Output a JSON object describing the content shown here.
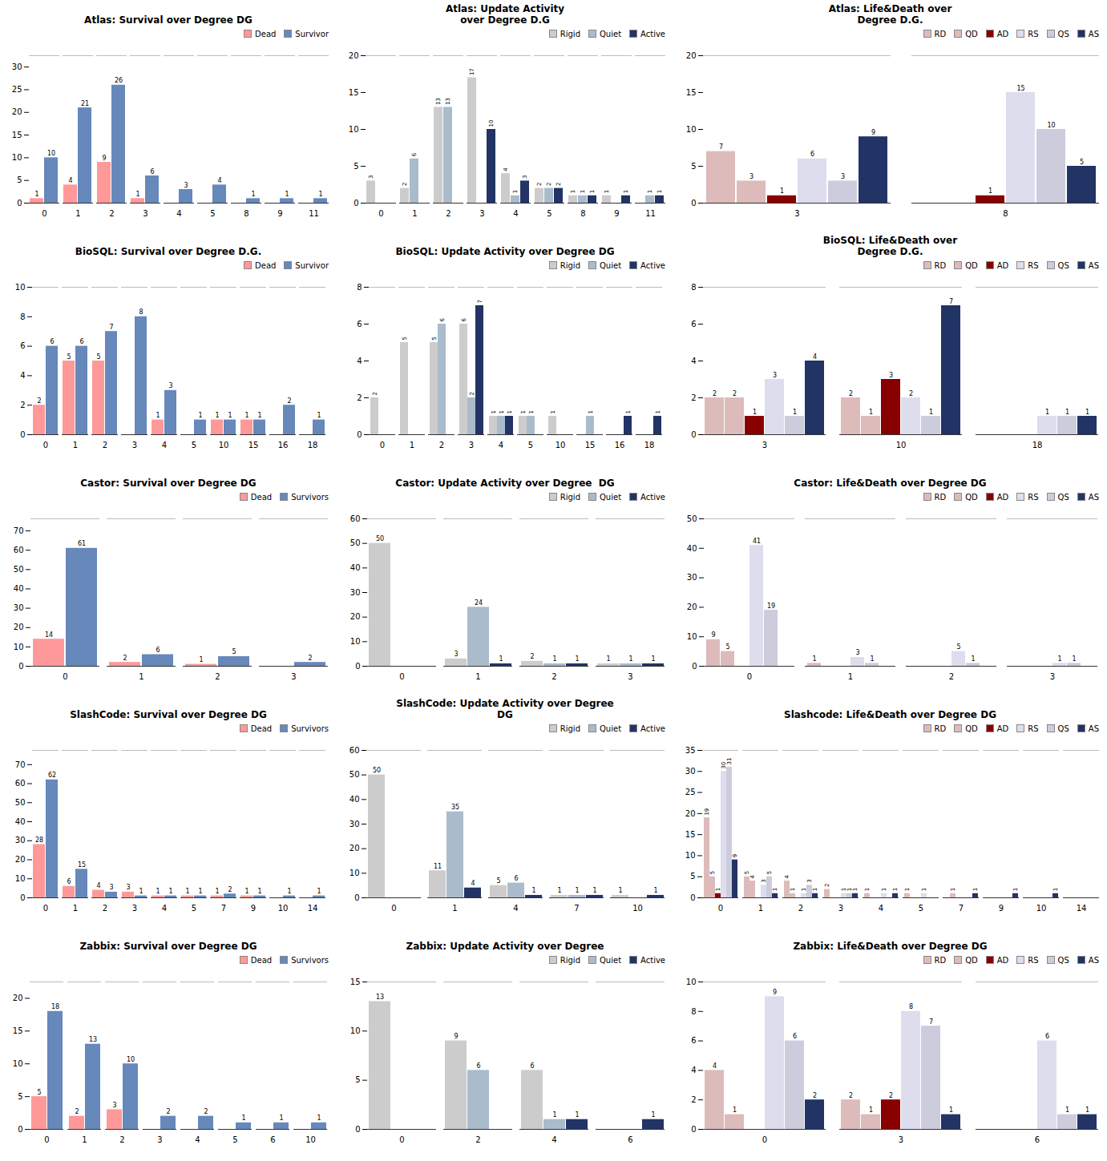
{
  "chart_data": [
    {
      "type": "bar",
      "title": "Atlas: Survival over Degree DG",
      "categories": [
        "0",
        "1",
        "2",
        "3",
        "4",
        "5",
        "8",
        "9",
        "11"
      ],
      "series": [
        {
          "name": "Dead",
          "color": "#FF9999",
          "values": [
            1,
            4,
            9,
            1,
            0,
            0,
            0,
            0,
            0
          ]
        },
        {
          "name": "Survivor",
          "color": "#6688BB",
          "values": [
            10,
            21,
            26,
            6,
            3,
            4,
            1,
            1,
            1
          ]
        }
      ],
      "ylim": [
        0,
        32.5
      ],
      "yticks": [
        0,
        5,
        10,
        15,
        20,
        25,
        30
      ],
      "data_labels": true,
      "legend": "upper right",
      "grid": false
    },
    {
      "type": "bar",
      "title": "Atlas: Update Activity\nover Degree D.G",
      "categories": [
        "0",
        "1",
        "2",
        "3",
        "4",
        "5",
        "8",
        "9",
        "11"
      ],
      "series": [
        {
          "name": "Rigid",
          "color": "#CCCCCC",
          "values": [
            3,
            2,
            13,
            17,
            4,
            2,
            1,
            1,
            0
          ]
        },
        {
          "name": "Quiet",
          "color": "#AABBCC",
          "values": [
            0,
            6,
            13,
            0,
            1,
            2,
            1,
            0,
            1
          ]
        },
        {
          "name": "Active",
          "color": "#223366",
          "values": [
            0,
            0,
            0,
            10,
            3,
            2,
            1,
            1,
            1
          ]
        }
      ],
      "ylim": [
        0,
        20
      ],
      "yticks": [
        0,
        5,
        10,
        15,
        20
      ],
      "data_labels": true,
      "legend": "upper right",
      "grid": false
    },
    {
      "type": "bar",
      "title": "Atlas: Life&Death over\nDegree D.G.",
      "categories": [
        "3",
        "8"
      ],
      "series": [
        {
          "name": "RD",
          "color": "#DDBBBB",
          "values": [
            7,
            0
          ]
        },
        {
          "name": "QD",
          "color": "#DDBBBB",
          "values": [
            3,
            0
          ]
        },
        {
          "name": "AD",
          "color": "#880000",
          "values": [
            1,
            1
          ]
        },
        {
          "name": "RS",
          "color": "#DDDDEE",
          "values": [
            6,
            15
          ]
        },
        {
          "name": "QS",
          "color": "#CCCCDD",
          "values": [
            3,
            10
          ]
        },
        {
          "name": "AS",
          "color": "#223366",
          "values": [
            9,
            5
          ]
        }
      ],
      "ylim": [
        0,
        20
      ],
      "yticks": [
        0,
        5,
        10,
        15,
        20
      ],
      "data_labels": true,
      "legend": "upper right",
      "grid": false
    },
    {
      "type": "bar",
      "title": "BioSQL: Survival over Degree D.G.",
      "categories": [
        "0",
        "1",
        "2",
        "3",
        "4",
        "5",
        "10",
        "15",
        "16",
        "18"
      ],
      "series": [
        {
          "name": "Dead",
          "color": "#FF9999",
          "values": [
            2,
            5,
            5,
            0,
            1,
            0,
            1,
            1,
            0,
            0
          ]
        },
        {
          "name": "Survivor",
          "color": "#6688BB",
          "values": [
            6,
            6,
            7,
            8,
            3,
            1,
            1,
            1,
            2,
            1
          ]
        }
      ],
      "ylim": [
        0,
        10
      ],
      "yticks": [
        0,
        2,
        4,
        6,
        8,
        10
      ],
      "data_labels": true,
      "legend": "upper right",
      "grid": false
    },
    {
      "type": "bar",
      "title": "BioSQL: Update Activity over Degree DG",
      "categories": [
        "0",
        "1",
        "2",
        "3",
        "4",
        "5",
        "10",
        "15",
        "16",
        "18"
      ],
      "series": [
        {
          "name": "Rigid",
          "color": "#CCCCCC",
          "values": [
            2,
            5,
            5,
            6,
            1,
            1,
            1,
            0,
            0,
            0
          ]
        },
        {
          "name": "Quiet",
          "color": "#AABBCC",
          "values": [
            0,
            0,
            6,
            2,
            1,
            1,
            0,
            1,
            0,
            0
          ]
        },
        {
          "name": "Active",
          "color": "#223366",
          "values": [
            0,
            0,
            0,
            7,
            1,
            0,
            0,
            0,
            1,
            1
          ]
        }
      ],
      "ylim": [
        0,
        8
      ],
      "yticks": [
        0,
        2,
        4,
        6,
        8
      ],
      "data_labels": true,
      "legend": "upper right",
      "grid": false
    },
    {
      "type": "bar",
      "title": "BioSQL: Life&Death over\nDegree D.G.",
      "categories": [
        "3",
        "10",
        "18"
      ],
      "series": [
        {
          "name": "RD",
          "color": "#DDBBBB",
          "values": [
            2,
            2,
            0
          ]
        },
        {
          "name": "QD",
          "color": "#DDBBBB",
          "values": [
            2,
            1,
            0
          ]
        },
        {
          "name": "AD",
          "color": "#880000",
          "values": [
            1,
            3,
            0
          ]
        },
        {
          "name": "RS",
          "color": "#DDDDEE",
          "values": [
            3,
            2,
            1
          ]
        },
        {
          "name": "QS",
          "color": "#CCCCDD",
          "values": [
            1,
            1,
            1
          ]
        },
        {
          "name": "AS",
          "color": "#223366",
          "values": [
            4,
            7,
            1
          ]
        }
      ],
      "ylim": [
        0,
        8
      ],
      "yticks": [
        0,
        2,
        4,
        6,
        8
      ],
      "data_labels": true,
      "legend": "upper right",
      "grid": false
    },
    {
      "type": "bar",
      "title": "Castor: Survival over Degree DG",
      "categories": [
        "0",
        "1",
        "2",
        "3"
      ],
      "series": [
        {
          "name": "Dead",
          "color": "#FF9999",
          "values": [
            14,
            2,
            1,
            0
          ]
        },
        {
          "name": "Survivors",
          "color": "#6688BB",
          "values": [
            61,
            6,
            5,
            2
          ]
        }
      ],
      "ylim": [
        0,
        76.25
      ],
      "yticks": [
        0,
        10,
        20,
        30,
        40,
        50,
        60,
        70
      ],
      "data_labels": true,
      "legend": "upper right",
      "grid": false
    },
    {
      "type": "bar",
      "title": "Castor: Update Activity over Degree  DG",
      "categories": [
        "0",
        "1",
        "2",
        "3"
      ],
      "series": [
        {
          "name": "Rigid",
          "color": "#CCCCCC",
          "values": [
            50,
            3,
            2,
            1
          ]
        },
        {
          "name": "Quiet",
          "color": "#AABBCC",
          "values": [
            0,
            24,
            1,
            1
          ]
        },
        {
          "name": "Active",
          "color": "#223366",
          "values": [
            0,
            1,
            1,
            1
          ]
        }
      ],
      "ylim": [
        0,
        60
      ],
      "yticks": [
        0,
        10,
        20,
        30,
        40,
        50,
        60
      ],
      "data_labels": true,
      "legend": "upper right",
      "grid": false
    },
    {
      "type": "bar",
      "title": "Castor: Life&Death over Degree DG",
      "categories": [
        "0",
        "1",
        "2",
        "3"
      ],
      "series": [
        {
          "name": "RD",
          "color": "#DDBBBB",
          "values": [
            9,
            1,
            0,
            0
          ]
        },
        {
          "name": "QD",
          "color": "#DDBBBB",
          "values": [
            5,
            0,
            0,
            0
          ]
        },
        {
          "name": "AD",
          "color": "#880000",
          "values": [
            0,
            0,
            0,
            0
          ]
        },
        {
          "name": "RS",
          "color": "#DDDDEE",
          "values": [
            41,
            3,
            5,
            1
          ]
        },
        {
          "name": "QS",
          "color": "#CCCCDD",
          "values": [
            19,
            1,
            1,
            1
          ]
        },
        {
          "name": "AS",
          "color": "#223366",
          "values": [
            0,
            0,
            0,
            0
          ]
        }
      ],
      "ylim": [
        0,
        50
      ],
      "yticks": [
        0,
        10,
        20,
        30,
        40,
        50
      ],
      "data_labels": true,
      "legend": "upper right",
      "grid": false
    },
    {
      "type": "bar",
      "title": "SlashCode: Survival over Degree DG",
      "categories": [
        "0",
        "1",
        "2",
        "3",
        "4",
        "5",
        "7",
        "9",
        "10",
        "14"
      ],
      "series": [
        {
          "name": "Dead",
          "color": "#FF9999",
          "values": [
            28,
            6,
            4,
            3,
            1,
            1,
            1,
            1,
            0,
            0
          ]
        },
        {
          "name": "Survivors",
          "color": "#6688BB",
          "values": [
            62,
            15,
            3,
            1,
            1,
            1,
            2,
            1,
            1,
            1
          ]
        }
      ],
      "ylim": [
        0,
        77.5
      ],
      "yticks": [
        0,
        10,
        20,
        30,
        40,
        50,
        60,
        70
      ],
      "data_labels": true,
      "legend": "upper right",
      "grid": false
    },
    {
      "type": "bar",
      "title": "SlashCode: Update Activity over Degree\nDG",
      "categories": [
        "0",
        "1",
        "4",
        "7",
        "10"
      ],
      "series": [
        {
          "name": "Rigid",
          "color": "#CCCCCC",
          "values": [
            50,
            11,
            5,
            1,
            1
          ]
        },
        {
          "name": "Quiet",
          "color": "#AABBCC",
          "values": [
            0,
            35,
            6,
            1,
            0
          ]
        },
        {
          "name": "Active",
          "color": "#223366",
          "values": [
            0,
            4,
            1,
            1,
            1
          ]
        }
      ],
      "ylim": [
        0,
        60
      ],
      "yticks": [
        0,
        10,
        20,
        30,
        40,
        50,
        60
      ],
      "data_labels": true,
      "legend": "upper right",
      "grid": false
    },
    {
      "type": "bar",
      "title": "Slashcode: Life&Death over Degree DG",
      "categories": [
        "0",
        "1",
        "2",
        "3",
        "4",
        "5",
        "7",
        "9",
        "10",
        "14"
      ],
      "series": [
        {
          "name": "RD",
          "color": "#DDBBBB",
          "values": [
            19,
            5,
            4,
            2,
            1,
            1,
            0,
            0,
            0,
            0
          ]
        },
        {
          "name": "QD",
          "color": "#DDBBBB",
          "values": [
            5,
            4,
            1,
            0,
            0,
            0,
            1,
            0,
            0,
            0
          ]
        },
        {
          "name": "AD",
          "color": "#880000",
          "values": [
            1,
            0,
            0,
            0,
            0,
            0,
            0,
            0,
            0,
            0
          ]
        },
        {
          "name": "RS",
          "color": "#DDDDEE",
          "values": [
            30,
            3,
            1,
            1,
            1,
            1,
            0,
            0,
            0,
            0
          ]
        },
        {
          "name": "QS",
          "color": "#CCCCDD",
          "values": [
            31,
            5,
            3,
            1,
            0,
            0,
            0,
            0,
            0,
            0
          ]
        },
        {
          "name": "AS",
          "color": "#223366",
          "values": [
            9,
            1,
            1,
            1,
            1,
            0,
            1,
            1,
            1,
            0
          ]
        }
      ],
      "ylim": [
        0,
        35
      ],
      "yticks": [
        0,
        5,
        10,
        15,
        20,
        25,
        30,
        35
      ],
      "data_labels": true,
      "legend": "upper right",
      "grid": false
    },
    {
      "type": "bar",
      "title": "Zabbix: Survival over Degree DG",
      "categories": [
        "0",
        "1",
        "2",
        "3",
        "4",
        "5",
        "6",
        "10"
      ],
      "series": [
        {
          "name": "Dead",
          "color": "#FF9999",
          "values": [
            5,
            2,
            3,
            0,
            0,
            0,
            0,
            0
          ]
        },
        {
          "name": "Survivors",
          "color": "#6688BB",
          "values": [
            18,
            13,
            10,
            2,
            2,
            1,
            1,
            1
          ]
        }
      ],
      "ylim": [
        0,
        22.5
      ],
      "yticks": [
        0,
        5,
        10,
        15,
        20
      ],
      "data_labels": true,
      "legend": "upper right",
      "grid": false
    },
    {
      "type": "bar",
      "title": "Zabbix: Update Activity over Degree",
      "categories": [
        "0",
        "2",
        "4",
        "6"
      ],
      "series": [
        {
          "name": "Rigid",
          "color": "#CCCCCC",
          "values": [
            13,
            9,
            6,
            0
          ]
        },
        {
          "name": "Quiet",
          "color": "#AABBCC",
          "values": [
            0,
            6,
            1,
            0
          ]
        },
        {
          "name": "Active",
          "color": "#223366",
          "values": [
            0,
            0,
            1,
            1
          ]
        }
      ],
      "ylim": [
        0,
        15
      ],
      "yticks": [
        0,
        5,
        10,
        15
      ],
      "data_labels": true,
      "legend": "upper right",
      "grid": false
    },
    {
      "type": "bar",
      "title": "Zabbix: Life&Death over Degree DG",
      "categories": [
        "0",
        "3",
        "6"
      ],
      "series": [
        {
          "name": "RD",
          "color": "#DDBBBB",
          "values": [
            4,
            2,
            0
          ]
        },
        {
          "name": "QD",
          "color": "#DDBBBB",
          "values": [
            1,
            1,
            0
          ]
        },
        {
          "name": "AD",
          "color": "#880000",
          "values": [
            0,
            2,
            0
          ]
        },
        {
          "name": "RS",
          "color": "#DDDDEE",
          "values": [
            9,
            8,
            6
          ]
        },
        {
          "name": "QS",
          "color": "#CCCCDD",
          "values": [
            6,
            7,
            1
          ]
        },
        {
          "name": "AS",
          "color": "#223366",
          "values": [
            2,
            1,
            1
          ]
        }
      ],
      "ylim": [
        0,
        10
      ],
      "yticks": [
        0,
        2,
        4,
        6,
        8,
        10
      ],
      "data_labels": true,
      "legend": "upper right",
      "grid": false
    }
  ]
}
